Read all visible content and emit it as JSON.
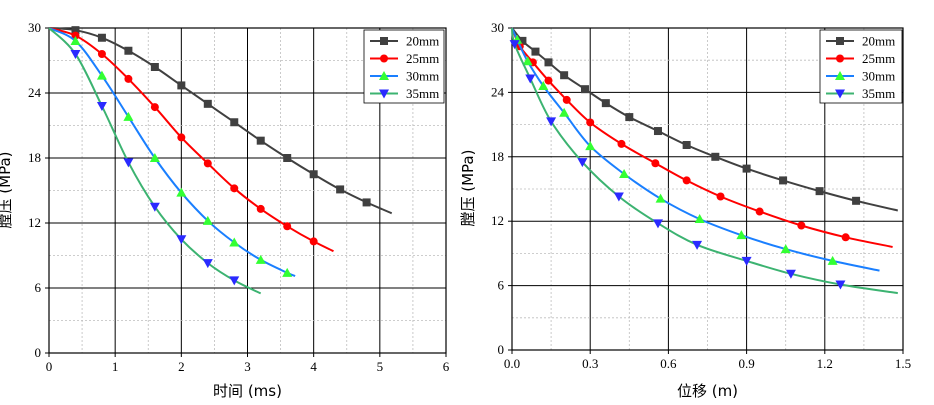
{
  "chart_data": [
    {
      "type": "line",
      "xlabel": "时间 (ms)",
      "ylabel": "膛压 (MPa)",
      "xlim": [
        0,
        6
      ],
      "ylim": [
        0,
        30
      ],
      "xticks": [
        "0",
        "1",
        "2",
        "3",
        "4",
        "5",
        "6"
      ],
      "yticks": [
        "0",
        "6",
        "12",
        "18",
        "24",
        "30"
      ],
      "grid": true,
      "legend": "top-right",
      "series": [
        {
          "name": "20mm",
          "color": "#404040",
          "marker": "square",
          "x": [
            0,
            0.4,
            0.8,
            1.2,
            1.6,
            2.0,
            2.4,
            2.8,
            3.2,
            3.6,
            4.0,
            4.4,
            4.8,
            5.18
          ],
          "y": [
            30,
            29.8,
            29.1,
            27.9,
            26.4,
            24.7,
            23.0,
            21.3,
            19.6,
            18.0,
            16.5,
            15.1,
            13.9,
            12.9
          ]
        },
        {
          "name": "25mm",
          "color": "#ff0000",
          "marker": "circle",
          "x": [
            0,
            0.4,
            0.8,
            1.2,
            1.6,
            2.0,
            2.4,
            2.8,
            3.2,
            3.6,
            4.0,
            4.3
          ],
          "y": [
            30,
            29.3,
            27.6,
            25.3,
            22.7,
            19.9,
            17.5,
            15.2,
            13.3,
            11.7,
            10.3,
            9.4
          ]
        },
        {
          "name": "30mm",
          "color": "#0070ff",
          "marker": "triangle-up",
          "x": [
            0,
            0.4,
            0.8,
            1.2,
            1.6,
            2.0,
            2.4,
            2.8,
            3.2,
            3.6,
            3.72
          ],
          "y": [
            30,
            28.8,
            25.6,
            21.8,
            18.0,
            14.8,
            12.2,
            10.2,
            8.6,
            7.4,
            7.1
          ]
        },
        {
          "name": "35mm",
          "color": "#2a2aff",
          "marker": "triangle-down",
          "x": [
            0,
            0.4,
            0.8,
            1.2,
            1.6,
            2.0,
            2.4,
            2.8,
            3.2
          ],
          "y": [
            30,
            27.6,
            22.8,
            17.6,
            13.5,
            10.5,
            8.3,
            6.7,
            5.5
          ]
        }
      ]
    },
    {
      "type": "line",
      "xlabel": "位移 (m)",
      "ylabel": "膛压 (MPa)",
      "xlim": [
        0,
        1.5
      ],
      "ylim": [
        0,
        30
      ],
      "xticks": [
        "0.0",
        "0.3",
        "0.6",
        "0.9",
        "1.2",
        "1.5"
      ],
      "yticks": [
        "0",
        "6",
        "12",
        "18",
        "24",
        "30"
      ],
      "grid": true,
      "legend": "top-right",
      "series": [
        {
          "name": "20mm",
          "color": "#404040",
          "marker": "square",
          "x": [
            0,
            0.04,
            0.09,
            0.14,
            0.2,
            0.28,
            0.36,
            0.45,
            0.56,
            0.67,
            0.78,
            0.9,
            1.04,
            1.18,
            1.32,
            1.48
          ],
          "y": [
            30,
            28.8,
            27.8,
            26.8,
            25.6,
            24.3,
            23.0,
            21.7,
            20.4,
            19.1,
            18.0,
            16.9,
            15.8,
            14.8,
            13.9,
            13.0
          ]
        },
        {
          "name": "25mm",
          "color": "#ff0000",
          "marker": "circle",
          "x": [
            0,
            0.03,
            0.08,
            0.14,
            0.21,
            0.3,
            0.42,
            0.55,
            0.67,
            0.8,
            0.95,
            1.11,
            1.28,
            1.46
          ],
          "y": [
            30,
            28.3,
            26.8,
            25.1,
            23.3,
            21.2,
            19.2,
            17.4,
            15.8,
            14.3,
            12.9,
            11.6,
            10.5,
            9.6
          ]
        },
        {
          "name": "30mm",
          "color": "#0070ff",
          "marker": "triangle-up",
          "x": [
            0,
            0.02,
            0.06,
            0.12,
            0.2,
            0.3,
            0.43,
            0.57,
            0.72,
            0.88,
            1.05,
            1.23,
            1.41
          ],
          "y": [
            30,
            28.9,
            26.9,
            24.6,
            22.1,
            19.0,
            16.4,
            14.1,
            12.2,
            10.7,
            9.4,
            8.3,
            7.4
          ]
        },
        {
          "name": "35mm",
          "color": "#2a2aff",
          "marker": "triangle-down",
          "x": [
            0,
            0.01,
            0.07,
            0.15,
            0.27,
            0.41,
            0.56,
            0.71,
            0.9,
            1.07,
            1.26,
            1.48
          ],
          "y": [
            30,
            28.5,
            25.3,
            21.3,
            17.5,
            14.3,
            11.8,
            9.8,
            8.3,
            7.1,
            6.1,
            5.3
          ]
        }
      ]
    }
  ]
}
